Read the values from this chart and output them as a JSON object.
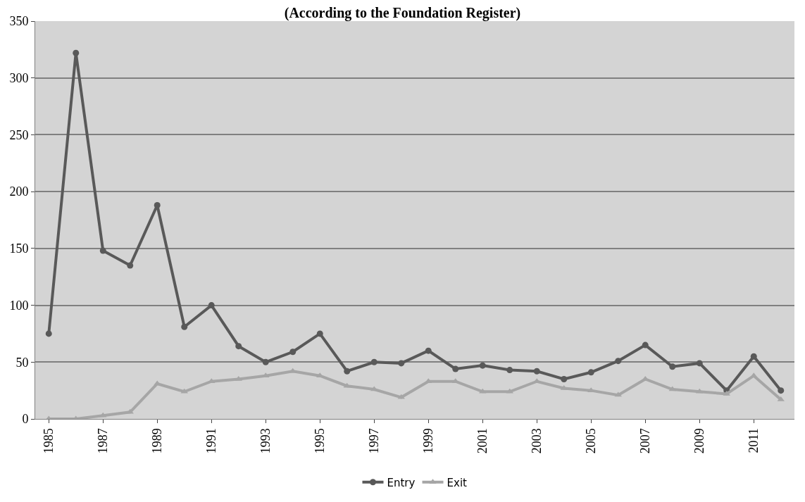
{
  "chart_data": {
    "type": "line",
    "title": "(According to the Foundation Register)",
    "categories": [
      "1985",
      null,
      "1987",
      null,
      "1989",
      null,
      "1991",
      null,
      "1993",
      null,
      "1995",
      null,
      "1997",
      null,
      "1999",
      null,
      "2001",
      null,
      "2003",
      null,
      "2005",
      null,
      "2007",
      null,
      "2009",
      null,
      "2011",
      null
    ],
    "series": [
      {
        "name": "Entry",
        "color": "#595959",
        "marker": "circle",
        "values": [
          75,
          322,
          148,
          135,
          188,
          81,
          100,
          64,
          50,
          59,
          75,
          42,
          50,
          49,
          60,
          44,
          47,
          43,
          42,
          35,
          41,
          51,
          65,
          46,
          49,
          25,
          55,
          25
        ]
      },
      {
        "name": "Exit",
        "color": "#a6a6a6",
        "marker": "triangle",
        "values": [
          0,
          0,
          3,
          6,
          31,
          24,
          33,
          35,
          38,
          42,
          38,
          29,
          26,
          19,
          33,
          33,
          24,
          24,
          33,
          27,
          25,
          21,
          35,
          26,
          24,
          22,
          38,
          17
        ]
      }
    ],
    "ylim": [
      0,
      350
    ],
    "yticks": [
      0,
      50,
      100,
      150,
      200,
      250,
      300,
      350
    ],
    "grid": "y",
    "legend": "bottom",
    "line_style": "solid"
  }
}
